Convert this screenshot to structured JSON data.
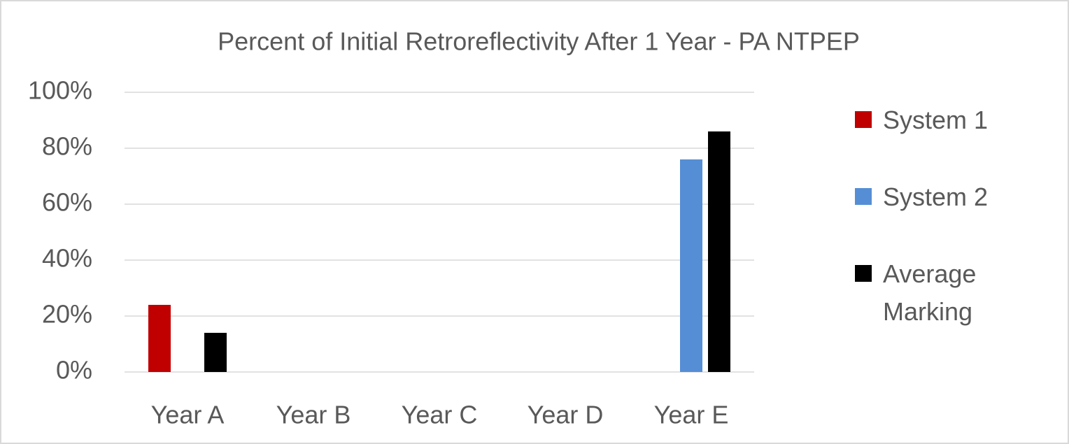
{
  "chart_data": {
    "type": "bar",
    "title": "Percent of Initial Retroreflectivity After 1 Year - PA NTPEP",
    "categories": [
      "Year A",
      "Year B",
      "Year C",
      "Year D",
      "Year E"
    ],
    "series": [
      {
        "name": "System 1",
        "color": "#c00000",
        "values": [
          24,
          null,
          null,
          null,
          null
        ]
      },
      {
        "name": "System 2",
        "color": "#558ed5",
        "values": [
          null,
          null,
          null,
          null,
          76
        ]
      },
      {
        "name": "Average Marking",
        "color": "#000000",
        "values": [
          14,
          null,
          null,
          null,
          86
        ]
      }
    ],
    "ylim": [
      0,
      100
    ],
    "yticks": [
      {
        "value": 0,
        "label": "0%"
      },
      {
        "value": 20,
        "label": "20%"
      },
      {
        "value": 40,
        "label": "40%"
      },
      {
        "value": 60,
        "label": "60%"
      },
      {
        "value": 80,
        "label": "80%"
      },
      {
        "value": 100,
        "label": "100%"
      }
    ],
    "grid": true,
    "legend": "right"
  }
}
